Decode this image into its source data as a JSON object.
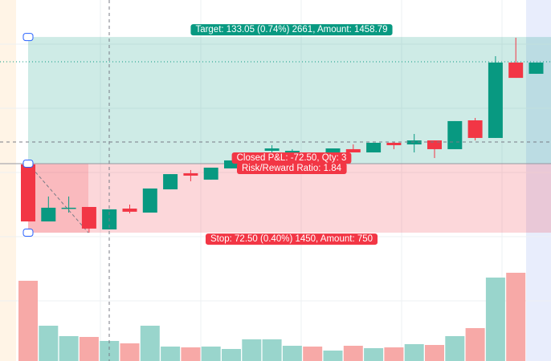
{
  "chart_data": {
    "type": "candlestick",
    "open": [
      18124.2,
      18064.3,
      18078.7,
      18079.5,
      18055.9,
      18077.8,
      18073.6,
      18098.0,
      18114.9,
      18108.2,
      18120.0,
      18132.6,
      18138.5,
      18136.8,
      18136.8,
      18136.8,
      18140.2,
      18136.8,
      18146.9,
      18145.2,
      18149.4,
      18140.2,
      18170.5,
      18152.0,
      18231.2,
      18219.4
    ],
    "close": [
      18064.3,
      18078.7,
      18078.7,
      18056.8,
      18077.0,
      18074.5,
      18098.9,
      18114.0,
      18112.4,
      18120.8,
      18128.4,
      18136.8,
      18141.0,
      18138.5,
      18135.1,
      18141.0,
      18136.8,
      18146.9,
      18144.4,
      18149.4,
      18140.2,
      18169.7,
      18152.0,
      18231.2,
      18215.1,
      18231.2
    ],
    "high": [
      18124.2,
      18090.5,
      18090.5,
      18079.5,
      18077.0,
      18082.0,
      18098.9,
      18114.0,
      18118.3,
      18120.8,
      18128.4,
      18136.8,
      18144.4,
      18140.2,
      18136.8,
      18141.0,
      18145.2,
      18146.9,
      18147.7,
      18156.2,
      18149.4,
      18169.7,
      18173.0,
      18237.9,
      18257.3,
      18231.2
    ],
    "low": [
      18064.3,
      18064.3,
      18073.6,
      18052.5,
      18055.9,
      18072.8,
      18073.6,
      18098.0,
      18106.5,
      18108.2,
      18120.0,
      18132.6,
      18136.8,
      18136.8,
      18135.1,
      18136.8,
      18136.8,
      18136.8,
      18140.2,
      18136.8,
      18130.9,
      18140.2,
      18149.4,
      18152.0,
      18215.1,
      18219.4
    ],
    "volume": [
      1000,
      440,
      310,
      300,
      250,
      220,
      440,
      180,
      170,
      180,
      150,
      270,
      270,
      190,
      180,
      130,
      190,
      160,
      170,
      210,
      200,
      310,
      410,
      1040,
      1100,
      null
    ],
    "up_color": "#089981",
    "down_color": "#f23645",
    "volume_up_color": "#99d5cc",
    "volume_down_color": "#f7a9a7",
    "ylim": [
      17917.7,
      18296.9
    ],
    "y2lim": [
      0,
      4500
    ],
    "position": {
      "entry": 18125,
      "target": 18258.05,
      "stop": 18052.5,
      "target_label": "Target: 133.05 (0.74%) 2661, Amount: 1458.79",
      "pnl_label": "Closed P&L: -72.50, Qty: 3",
      "ratio_label": "Risk/Reward Ratio: 1.84",
      "stop_label": "Stop: 72.50 (0.40%) 1450, Amount: 750"
    }
  }
}
